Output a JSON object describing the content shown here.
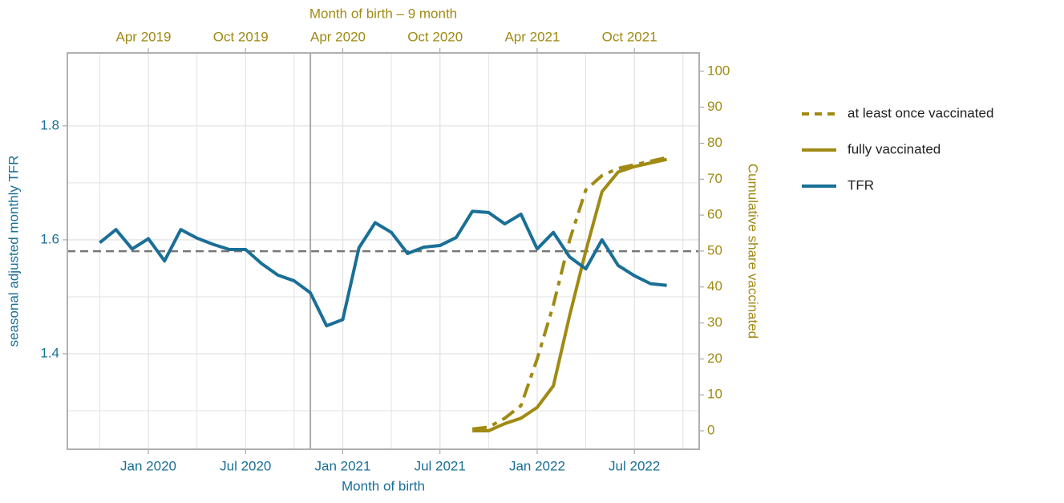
{
  "chart_data": {
    "type": "line",
    "xlabel": "Month of birth",
    "x2label": "Month of birth – 9 month",
    "ylabel": "seasonal adjusted monthly TFR",
    "y2label": "Cumulative share vaccinated",
    "xlim": [
      "2019-08",
      "2022-11"
    ],
    "x2lim": [
      "2018-11",
      "2022-02"
    ],
    "xticks": [
      {
        "value": "2020-01",
        "label": "Jan 2020"
      },
      {
        "value": "2020-07",
        "label": "Jul 2020"
      },
      {
        "value": "2021-01",
        "label": "Jan 2021"
      },
      {
        "value": "2021-07",
        "label": "Jul 2021"
      },
      {
        "value": "2022-01",
        "label": "Jan 2022"
      },
      {
        "value": "2022-07",
        "label": "Jul 2022"
      }
    ],
    "x_minor_ticks": [
      "2019-10",
      "2020-04",
      "2020-10",
      "2021-04",
      "2021-10",
      "2022-04",
      "2022-10"
    ],
    "x2ticks": [
      {
        "value": "2019-04",
        "label": "Apr 2019"
      },
      {
        "value": "2019-10",
        "label": "Oct 2019"
      },
      {
        "value": "2020-04",
        "label": "Apr 2020"
      },
      {
        "value": "2020-10",
        "label": "Oct 2020"
      },
      {
        "value": "2021-04",
        "label": "Apr 2021"
      },
      {
        "value": "2021-10",
        "label": "Oct 2021"
      }
    ],
    "ylim": [
      1.2324,
      1.928
    ],
    "yticks": [
      1.4,
      1.6,
      1.8
    ],
    "y_minor_ticks": [
      1.3,
      1.5,
      1.7
    ],
    "y2lim": [
      -5.13,
      105.1
    ],
    "y2ticks": [
      0,
      10,
      20,
      30,
      40,
      50,
      60,
      70,
      80,
      90,
      100
    ],
    "grid": true,
    "hline": 1.58,
    "vline": "2020-11",
    "legend": "right",
    "series": [
      {
        "name": "at least once vaccinated",
        "color": "#a08a14",
        "linestyle": "dashed",
        "axis": "y2",
        "xaxis": "x2",
        "x": [
          "2020-12",
          "2021-01",
          "2021-02",
          "2021-03",
          "2021-04",
          "2021-05",
          "2021-06",
          "2021-07",
          "2021-08",
          "2021-09",
          "2021-10",
          "2021-11",
          "2021-12"
        ],
        "values": [
          0.5,
          1,
          3.5,
          7,
          20,
          35,
          53,
          67,
          71,
          73,
          74,
          75,
          76
        ]
      },
      {
        "name": "fully vaccinated",
        "color": "#a08a14",
        "linestyle": "solid",
        "axis": "y2",
        "xaxis": "x2",
        "x": [
          "2020-12",
          "2021-01",
          "2021-02",
          "2021-03",
          "2021-04",
          "2021-05",
          "2021-06",
          "2021-07",
          "2021-08",
          "2021-09",
          "2021-10",
          "2021-11",
          "2021-12"
        ],
        "values": [
          0,
          0,
          2,
          3.5,
          6.5,
          12.5,
          32,
          50,
          66.5,
          72,
          73.5,
          74.5,
          75.5
        ]
      },
      {
        "name": "TFR",
        "color": "#1a6f96",
        "linestyle": "solid",
        "axis": "y",
        "xaxis": "x",
        "x": [
          "2019-10",
          "2019-11",
          "2019-12",
          "2020-01",
          "2020-02",
          "2020-03",
          "2020-04",
          "2020-05",
          "2020-06",
          "2020-07",
          "2020-08",
          "2020-09",
          "2020-10",
          "2020-11",
          "2020-12",
          "2021-01",
          "2021-02",
          "2021-03",
          "2021-04",
          "2021-05",
          "2021-06",
          "2021-07",
          "2021-08",
          "2021-09",
          "2021-10",
          "2021-11",
          "2021-12",
          "2022-01",
          "2022-02",
          "2022-03",
          "2022-04",
          "2022-05",
          "2022-06",
          "2022-07",
          "2022-08",
          "2022-09"
        ],
        "values": [
          1.595,
          1.618,
          1.584,
          1.602,
          1.563,
          1.618,
          1.603,
          1.592,
          1.583,
          1.583,
          1.558,
          1.538,
          1.528,
          1.507,
          1.449,
          1.46,
          1.586,
          1.63,
          1.613,
          1.576,
          1.587,
          1.59,
          1.604,
          1.65,
          1.648,
          1.628,
          1.645,
          1.584,
          1.613,
          1.57,
          1.549,
          1.6,
          1.555,
          1.537,
          1.523,
          1.52
        ]
      }
    ]
  }
}
